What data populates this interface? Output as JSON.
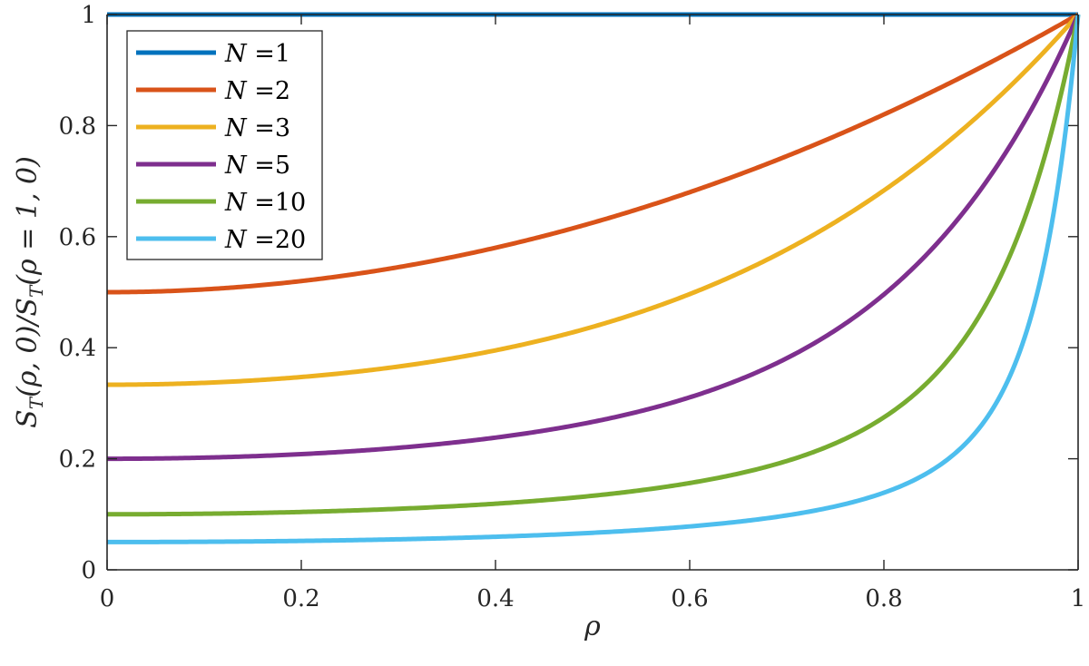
{
  "chart_data": {
    "type": "line",
    "title": "",
    "xlabel": "ρ",
    "ylabel": "S_T(ρ,0)/S_T(ρ=1,0)",
    "xlim": [
      0,
      1
    ],
    "ylim": [
      0,
      1
    ],
    "xticks": [
      "0",
      "0.2",
      "0.4",
      "0.6",
      "0.8",
      "1"
    ],
    "yticks": [
      "0",
      "0.2",
      "0.4",
      "0.6",
      "0.8",
      "1"
    ],
    "grid": false,
    "legend_position": "upper-left",
    "x": [
      0,
      0.1,
      0.2,
      0.3,
      0.4,
      0.5,
      0.6,
      0.7,
      0.8,
      0.85,
      0.9,
      0.95,
      1
    ],
    "series": [
      {
        "name": "N =1",
        "N": 1,
        "color": "#0072BD",
        "values": [
          1,
          1,
          1,
          1,
          1,
          1,
          1,
          1,
          1,
          1,
          1,
          1,
          1
        ]
      },
      {
        "name": "N =2",
        "N": 2,
        "color": "#D95319",
        "values": [
          0.5,
          0.505,
          0.52,
          0.545,
          0.58,
          0.625,
          0.68,
          0.745,
          0.82,
          0.861,
          0.905,
          0.951,
          1
        ]
      },
      {
        "name": "N =3",
        "N": 3,
        "color": "#EDB120",
        "values": [
          0.333,
          0.337,
          0.347,
          0.366,
          0.395,
          0.438,
          0.497,
          0.577,
          0.683,
          0.747,
          0.82,
          0.905,
          1
        ]
      },
      {
        "name": "N =5",
        "N": 5,
        "color": "#7E2F8E",
        "values": [
          0.2,
          0.202,
          0.208,
          0.219,
          0.238,
          0.266,
          0.311,
          0.378,
          0.481,
          0.557,
          0.654,
          0.795,
          1
        ]
      },
      {
        "name": "N =10",
        "N": 10,
        "color": "#77AC30",
        "values": [
          0.1,
          0.101,
          0.104,
          0.11,
          0.119,
          0.133,
          0.156,
          0.196,
          0.273,
          0.35,
          0.463,
          0.657,
          1
        ]
      },
      {
        "name": "N =20",
        "N": 20,
        "color": "#4DBEEE",
        "values": [
          0.05,
          0.0505,
          0.052,
          0.055,
          0.0595,
          0.0667,
          0.078,
          0.098,
          0.139,
          0.178,
          0.259,
          0.438,
          1
        ]
      }
    ]
  },
  "legend": {
    "items": [
      {
        "label_var": "N",
        "label_eq": "=1"
      },
      {
        "label_var": "N",
        "label_eq": "=2"
      },
      {
        "label_var": "N",
        "label_eq": "=3"
      },
      {
        "label_var": "N",
        "label_eq": "=5"
      },
      {
        "label_var": "N",
        "label_eq": "=10"
      },
      {
        "label_var": "N",
        "label_eq": "=20"
      }
    ]
  },
  "axes": {
    "x_label": "ρ",
    "y_label_parts": [
      "S",
      "T",
      "(ρ, 0)/",
      "S",
      "T",
      "(ρ = 1, 0)"
    ]
  }
}
